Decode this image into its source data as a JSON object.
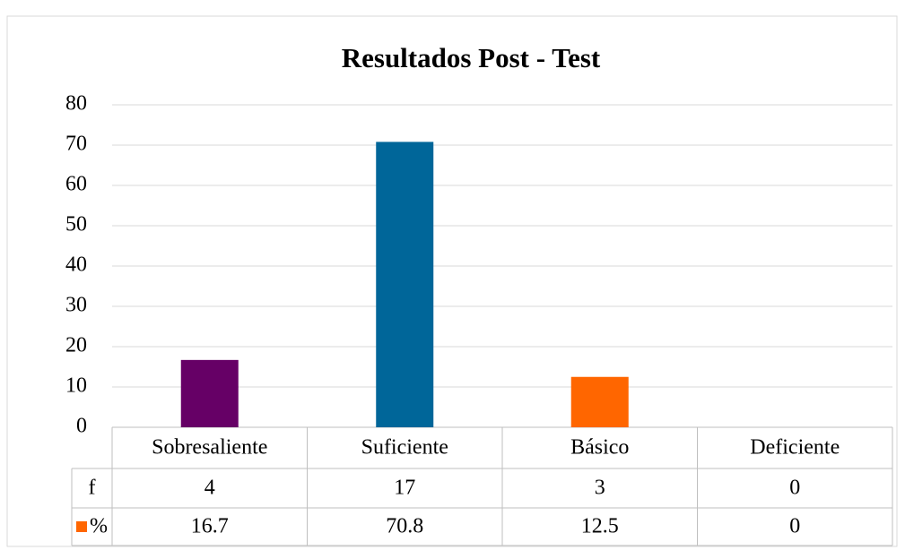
{
  "chart_data": {
    "type": "bar",
    "title": "Resultados Post - Test",
    "categories": [
      "Sobresaliente",
      "Suficiente",
      "Básico",
      "Deficiente"
    ],
    "series": [
      {
        "name": "f",
        "values": [
          4,
          17,
          3,
          0
        ]
      },
      {
        "name": "%",
        "color": "#ff6600",
        "values": [
          16.7,
          70.8,
          12.5,
          0
        ],
        "point_colors": [
          "#660066",
          "#006699",
          "#ff6600",
          "#ff6600"
        ]
      }
    ],
    "ylim": [
      0,
      80
    ],
    "yticks": [
      0,
      10,
      20,
      30,
      40,
      50,
      60,
      70,
      80
    ],
    "grid": true
  }
}
